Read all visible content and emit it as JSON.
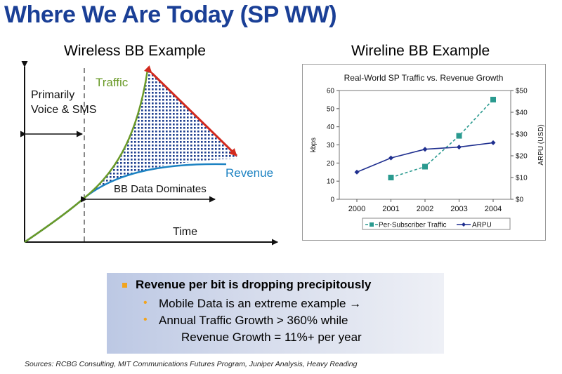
{
  "title": "Where We Are Today (SP WW)",
  "left_panel": {
    "subtitle": "Wireless BB Example",
    "annotation_left": "Primarily\nVoice & SMS",
    "traffic_label": "Traffic",
    "revenue_label": "Revenue",
    "dominates_label": "BB Data Dominates",
    "time_label": "Time",
    "colors": {
      "traffic": "#6a9a28",
      "revenue": "#1c82c2",
      "gap_fill": "#1f3f8f",
      "gap_arrow": "#d22a1e",
      "divider": "#888888"
    }
  },
  "right_panel": {
    "subtitle": "Wireline BB Example",
    "chart_data": {
      "type": "line",
      "title": "Real-World SP Traffic vs. Revenue Growth",
      "x": [
        2000,
        2001,
        2002,
        2003,
        2004
      ],
      "x_tick_labels": [
        "2000",
        "2001",
        "2002",
        "2003",
        "2004"
      ],
      "ylabel": "kbps",
      "ylim": [
        0,
        60
      ],
      "y_tick_labels": [
        "0",
        "10",
        "20",
        "30",
        "40",
        "50",
        "60"
      ],
      "y2label": "ARPU (USD)",
      "y2lim": [
        0,
        50
      ],
      "y2_tick_labels": [
        "$0",
        "$10",
        "$20",
        "$30",
        "$40",
        "$50"
      ],
      "series": [
        {
          "name": "Per-Subscriber Traffic",
          "axis": "left",
          "marker": "square",
          "line": "dashed",
          "color": "#2a9a8f",
          "x": [
            2001,
            2002,
            2003,
            2004
          ],
          "values": [
            12,
            18,
            35,
            55
          ]
        },
        {
          "name": "ARPU",
          "axis": "right",
          "marker": "diamond",
          "line": "solid",
          "color": "#1f2f8f",
          "x": [
            2000,
            2001,
            2002,
            2003,
            2004
          ],
          "values": [
            12.5,
            19,
            23,
            24,
            26
          ]
        }
      ],
      "legend_position": "bottom",
      "grid": false
    }
  },
  "bullets": {
    "main": "Revenue per bit is dropping precipitously",
    "sub1": "Mobile Data is an extreme example →",
    "sub2": "Annual Traffic Growth > 360% while",
    "sub2_cont": "Revenue Growth = 11%+ per year",
    "colors": {
      "bullet": "#f2a41d"
    }
  },
  "sources": "Sources: RCBG Consulting, MIT Communications Futures Program, Juniper Analysis, Heavy Reading"
}
